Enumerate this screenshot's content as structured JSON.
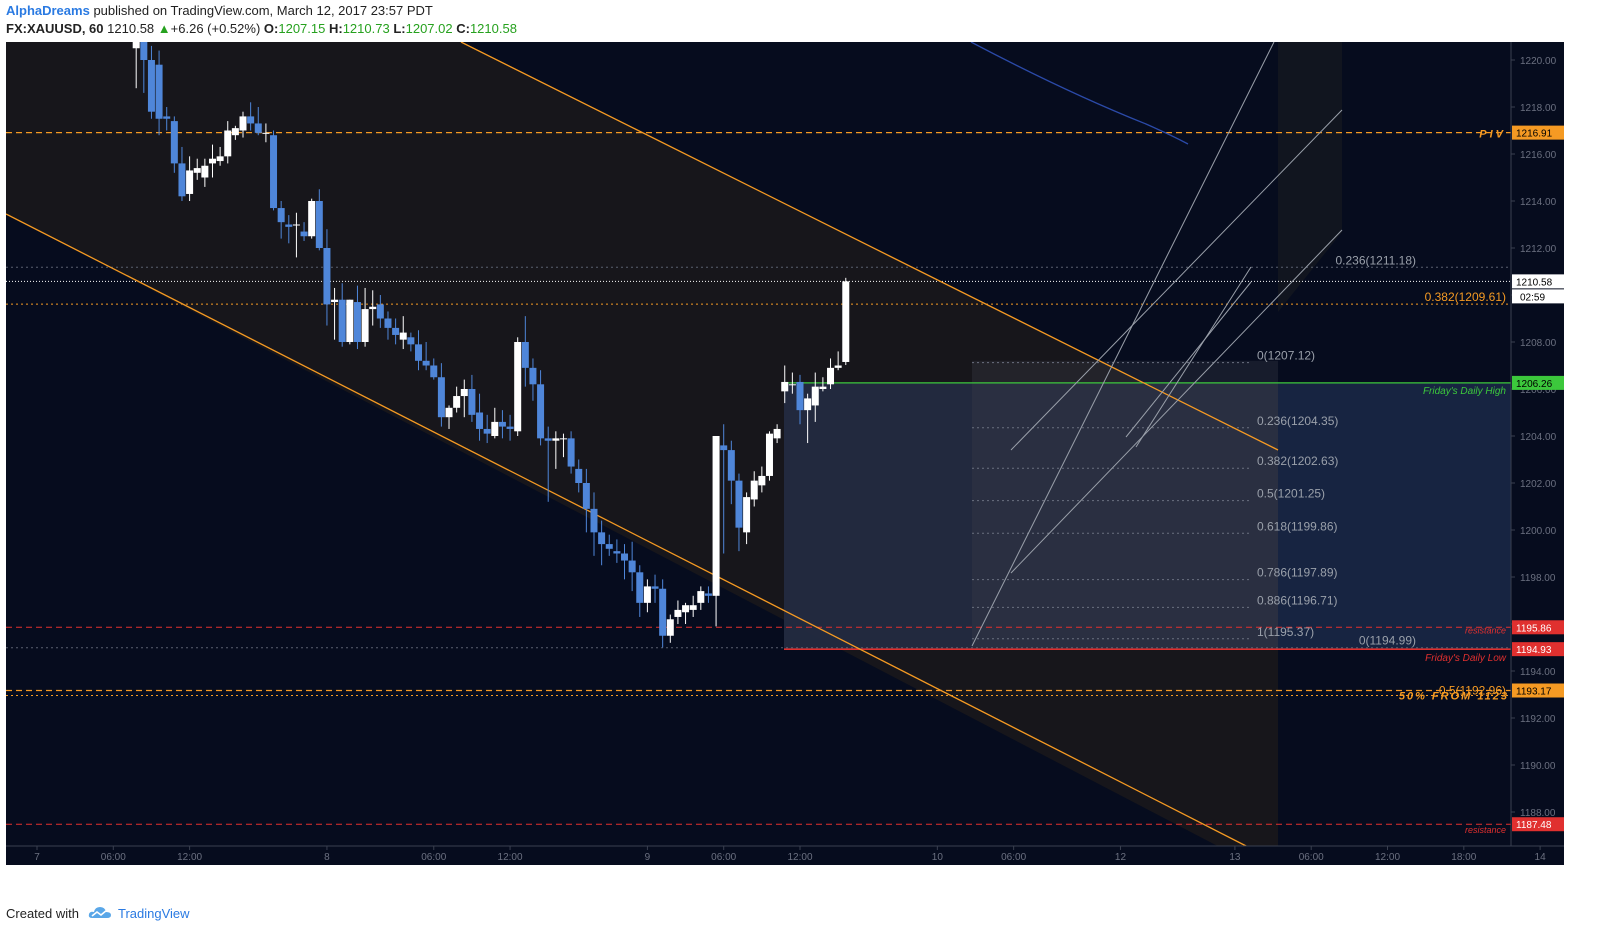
{
  "header": {
    "author": "AlphaDreams",
    "published": "published on TradingView.com, March 12, 2017 23:57 PDT",
    "symbol": "FX:XAUUSD, 60",
    "last": "1210.58",
    "change_arrow": "▲",
    "change": "+6.26 (+0.52%)",
    "o_label": "O:",
    "o_value": "1207.15",
    "h_label": "H:",
    "h_value": "1210.73",
    "l_label": "L:",
    "l_value": "1207.02",
    "c_label": "C:",
    "c_value": "1210.58"
  },
  "footer": {
    "created": "Created with",
    "brand": "TradingView",
    "logo_icon": "tradingview-cloud-icon"
  },
  "colors": {
    "background": "#060c1e",
    "bull": "#ffffff",
    "bear": "#4f86d9",
    "orange": "#f59a23",
    "red": "#e0302f",
    "green": "#3cc83c"
  },
  "chart_data": {
    "type": "candlestick",
    "instrument": "FX:XAUUSD",
    "interval": "60",
    "ylim": [
      1186.5,
      1221.0
    ],
    "y_ticks": [
      "1188.00",
      "1190.00",
      "1192.00",
      "1194.00",
      "1196.00",
      "1198.00",
      "1200.00",
      "1202.00",
      "1204.00",
      "1206.00",
      "1208.00",
      "1210.00",
      "1212.00",
      "1214.00",
      "1216.00",
      "1218.00",
      "1220.00"
    ],
    "x_ticks": [
      {
        "t": 0,
        "label": "7"
      },
      {
        "t": 10,
        "label": "06:00"
      },
      {
        "t": 20,
        "label": "12:00"
      },
      {
        "t": 38,
        "label": "8"
      },
      {
        "t": 52,
        "label": "06:00"
      },
      {
        "t": 62,
        "label": "12:00"
      },
      {
        "t": 80,
        "label": "9"
      },
      {
        "t": 90,
        "label": "06:00"
      },
      {
        "t": 100,
        "label": "12:00"
      },
      {
        "t": 118,
        "label": "10"
      },
      {
        "t": 128,
        "label": "06:00"
      },
      {
        "t": 142,
        "label": "12"
      },
      {
        "t": 157,
        "label": "13"
      },
      {
        "t": 167,
        "label": "06:00"
      },
      {
        "t": 177,
        "label": "12:00"
      },
      {
        "t": 187,
        "label": "18:00"
      },
      {
        "t": 197,
        "label": "14"
      }
    ],
    "candles": [
      [
        1220.5,
        1221.2,
        1218.8,
        1220.8
      ],
      [
        1221.0,
        1221.5,
        1218.6,
        1220.0
      ],
      [
        1220.0,
        1220.6,
        1217.5,
        1217.8
      ],
      [
        1219.8,
        1220.4,
        1216.8,
        1217.5
      ],
      [
        1217.6,
        1218.0,
        1217.0,
        1217.5
      ],
      [
        1217.4,
        1217.6,
        1215.2,
        1215.6
      ],
      [
        1215.6,
        1216.3,
        1214.0,
        1214.2
      ],
      [
        1214.3,
        1215.9,
        1214.0,
        1215.3
      ],
      [
        1215.2,
        1215.8,
        1214.9,
        1215.4
      ],
      [
        1215.0,
        1215.8,
        1214.6,
        1215.5
      ],
      [
        1215.6,
        1216.4,
        1215.0,
        1215.8
      ],
      [
        1215.7,
        1216.3,
        1215.5,
        1215.9
      ],
      [
        1215.9,
        1217.4,
        1215.6,
        1217.0
      ],
      [
        1216.8,
        1217.2,
        1216.6,
        1217.1
      ],
      [
        1217.0,
        1217.8,
        1216.7,
        1217.6
      ],
      [
        1217.6,
        1218.2,
        1217.0,
        1217.3
      ],
      [
        1217.3,
        1218.0,
        1216.8,
        1216.9
      ],
      [
        1216.9,
        1217.3,
        1216.5,
        1216.9
      ],
      [
        1216.8,
        1217.0,
        1213.6,
        1213.7
      ],
      [
        1213.7,
        1214.0,
        1212.4,
        1213.1
      ],
      [
        1213.0,
        1213.4,
        1212.2,
        1212.9
      ],
      [
        1213.0,
        1213.5,
        1211.6,
        1213.0
      ],
      [
        1212.7,
        1213.1,
        1212.3,
        1212.5
      ],
      [
        1212.5,
        1214.1,
        1212.4,
        1214.0
      ],
      [
        1214.0,
        1214.5,
        1211.9,
        1212.0
      ],
      [
        1212.0,
        1212.8,
        1208.7,
        1209.6
      ],
      [
        1209.7,
        1210.3,
        1208.1,
        1209.8
      ],
      [
        1209.8,
        1210.5,
        1207.8,
        1208.0
      ],
      [
        1208.0,
        1209.8,
        1207.9,
        1209.8
      ],
      [
        1209.7,
        1210.4,
        1207.7,
        1208.0
      ],
      [
        1208.0,
        1210.3,
        1207.8,
        1209.4
      ],
      [
        1209.4,
        1210.2,
        1208.7,
        1209.5
      ],
      [
        1209.6,
        1210.0,
        1208.6,
        1209.0
      ],
      [
        1209.0,
        1209.3,
        1208.1,
        1208.6
      ],
      [
        1208.6,
        1209.0,
        1207.9,
        1208.3
      ],
      [
        1208.1,
        1209.1,
        1207.7,
        1208.4
      ],
      [
        1208.2,
        1208.4,
        1207.6,
        1207.9
      ],
      [
        1207.9,
        1208.5,
        1206.8,
        1207.2
      ],
      [
        1207.2,
        1208.0,
        1206.8,
        1207.0
      ],
      [
        1207.0,
        1207.3,
        1206.4,
        1206.5
      ],
      [
        1206.5,
        1207.1,
        1204.4,
        1204.8
      ],
      [
        1204.8,
        1205.3,
        1204.3,
        1205.2
      ],
      [
        1205.2,
        1206.1,
        1205.0,
        1205.7
      ],
      [
        1205.7,
        1206.4,
        1204.8,
        1206.0
      ],
      [
        1206.0,
        1206.6,
        1204.6,
        1204.9
      ],
      [
        1205.0,
        1205.8,
        1203.8,
        1204.3
      ],
      [
        1204.3,
        1204.9,
        1203.7,
        1204.1
      ],
      [
        1204.0,
        1205.2,
        1203.9,
        1204.6
      ],
      [
        1204.6,
        1205.1,
        1203.9,
        1204.4
      ],
      [
        1204.4,
        1204.9,
        1203.8,
        1204.3
      ],
      [
        1204.2,
        1208.2,
        1204.0,
        1208.0
      ],
      [
        1208.0,
        1209.1,
        1206.1,
        1206.9
      ],
      [
        1206.9,
        1207.3,
        1205.5,
        1206.2
      ],
      [
        1206.2,
        1206.8,
        1203.6,
        1203.9
      ],
      [
        1203.9,
        1204.4,
        1201.2,
        1203.8
      ],
      [
        1203.8,
        1204.2,
        1202.6,
        1203.9
      ],
      [
        1203.9,
        1204.1,
        1203.1,
        1203.9
      ],
      [
        1203.9,
        1204.2,
        1202.4,
        1202.7
      ],
      [
        1202.6,
        1203.0,
        1201.6,
        1202.0
      ],
      [
        1202.0,
        1202.6,
        1199.9,
        1200.9
      ],
      [
        1200.9,
        1201.6,
        1198.9,
        1199.9
      ],
      [
        1199.9,
        1200.4,
        1198.5,
        1199.4
      ],
      [
        1199.4,
        1199.8,
        1198.9,
        1199.2
      ],
      [
        1199.1,
        1199.6,
        1198.6,
        1199.0
      ],
      [
        1199.0,
        1199.4,
        1197.9,
        1198.7
      ],
      [
        1198.7,
        1199.5,
        1197.4,
        1198.2
      ],
      [
        1198.2,
        1198.5,
        1196.3,
        1196.9
      ],
      [
        1196.9,
        1197.9,
        1196.5,
        1197.6
      ],
      [
        1197.6,
        1198.1,
        1196.9,
        1197.5
      ],
      [
        1197.5,
        1197.9,
        1195.0,
        1195.5
      ],
      [
        1195.5,
        1196.4,
        1195.2,
        1196.2
      ],
      [
        1196.3,
        1197.0,
        1196.0,
        1196.6
      ],
      [
        1196.5,
        1196.9,
        1196.0,
        1196.8
      ],
      [
        1196.6,
        1197.2,
        1196.3,
        1196.8
      ],
      [
        1196.9,
        1197.6,
        1196.6,
        1197.4
      ],
      [
        1197.3,
        1197.6,
        1196.9,
        1197.2
      ],
      [
        1197.2,
        1204.0,
        1195.9,
        1204.0
      ],
      [
        1203.6,
        1204.5,
        1199.0,
        1203.4
      ],
      [
        1203.4,
        1203.8,
        1201.1,
        1202.1
      ],
      [
        1202.1,
        1202.4,
        1199.1,
        1200.1
      ],
      [
        1199.9,
        1201.6,
        1199.4,
        1201.4
      ],
      [
        1201.3,
        1202.5,
        1201.0,
        1202.1
      ],
      [
        1201.9,
        1202.7,
        1201.6,
        1202.3
      ],
      [
        1202.3,
        1204.2,
        1202.1,
        1204.1
      ],
      [
        1203.9,
        1204.5,
        1203.7,
        1204.3
      ],
      [
        1205.9,
        1207.0,
        1205.4,
        1206.3
      ],
      [
        1206.2,
        1206.7,
        1205.8,
        1206.2
      ],
      [
        1206.3,
        1206.6,
        1204.5,
        1205.1
      ],
      [
        1205.1,
        1205.8,
        1203.7,
        1205.6
      ],
      [
        1205.3,
        1206.7,
        1204.6,
        1206.1
      ],
      [
        1206.0,
        1206.5,
        1205.9,
        1206.1
      ],
      [
        1206.2,
        1207.3,
        1206.0,
        1206.9
      ],
      [
        1206.9,
        1207.6,
        1206.8,
        1207.0
      ],
      [
        1207.15,
        1210.73,
        1207.02,
        1210.58
      ]
    ],
    "indicators": {
      "piv": {
        "value": 1216.91,
        "label": "PIV"
      },
      "resistance_top": {
        "value": 1195.86,
        "label": "resistance"
      },
      "resistance_bottom": {
        "value": 1187.48,
        "label": "resistance"
      },
      "fridays_daily_high": {
        "value": 1206.26,
        "label": "Friday's Daily High"
      },
      "fridays_daily_low": {
        "value": 1194.93,
        "label": "Friday's Daily Low"
      },
      "fifty_from": {
        "value": 1193.17,
        "label": "50%  FROM  1123"
      },
      "last_price": {
        "value": 1210.58,
        "countdown": "02:59"
      }
    },
    "fib_big": [
      {
        "label": "0(1194.99)",
        "value": 1194.99
      },
      {
        "label": "0.236(1211.18)",
        "value": 1211.18
      },
      {
        "label": "0.382(1209.61)",
        "value": 1209.61
      },
      {
        "label": "0.5(1192.96)",
        "value": 1192.96
      }
    ],
    "fib_small": [
      {
        "label": "0(1207.12)",
        "value": 1207.12
      },
      {
        "label": "0.236(1204.35)",
        "value": 1204.35
      },
      {
        "label": "0.382(1202.63)",
        "value": 1202.63
      },
      {
        "label": "0.5(1201.25)",
        "value": 1201.25
      },
      {
        "label": "0.618(1199.86)",
        "value": 1199.86
      },
      {
        "label": "0.786(1197.89)",
        "value": 1197.89
      },
      {
        "label": "0.886(1196.71)",
        "value": 1196.71
      },
      {
        "label": "1(1195.37)",
        "value": 1195.37
      }
    ]
  }
}
